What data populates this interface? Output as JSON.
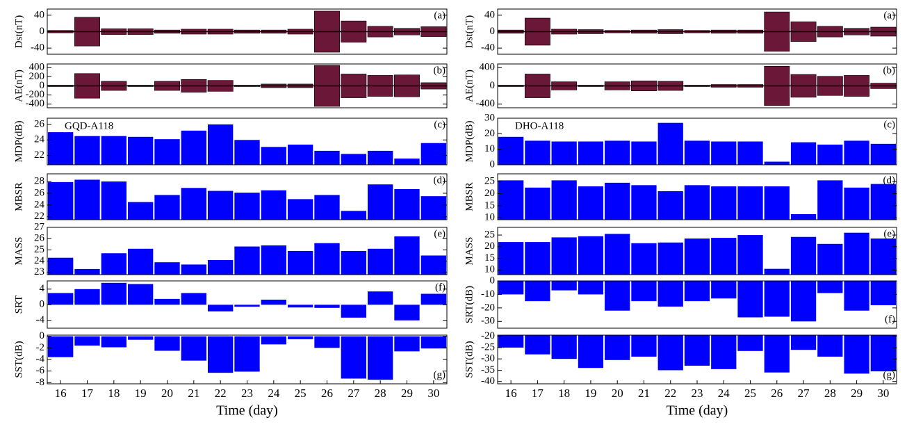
{
  "chart_data": [
    {
      "type": "spread",
      "ylabel": "Dst(nT)",
      "panel_label": "(a)",
      "color": "#6b1738",
      "ylim": [
        -55,
        55
      ],
      "yticks": [
        40,
        0,
        -40
      ],
      "values": [
        3,
        35,
        7,
        7,
        4,
        6,
        6,
        4,
        4,
        6,
        50,
        26,
        13,
        8,
        12
      ]
    },
    {
      "type": "spread",
      "ylabel": "AE(nT)",
      "panel_label": "(b)",
      "color": "#6b1738",
      "ylim": [
        -480,
        480
      ],
      "yticks": [
        400,
        200,
        0,
        -200,
        -400
      ],
      "values": [
        15,
        270,
        100,
        15,
        100,
        140,
        120,
        15,
        40,
        40,
        450,
        260,
        230,
        240,
        70
      ]
    },
    {
      "type": "bar",
      "ylabel": "MDP(dB)",
      "panel_label": "(c)",
      "annotation": "GQD-A118",
      "color": "#0000ff",
      "ylim": [
        20.8,
        26.8
      ],
      "yticks": [
        22,
        24,
        26
      ],
      "values": [
        25,
        24.5,
        24.5,
        24.4,
        24.1,
        25.2,
        26,
        24,
        23.1,
        23.4,
        22.6,
        22.2,
        22.6,
        21.6,
        23.6
      ]
    },
    {
      "type": "bar",
      "ylabel": "MBSR",
      "panel_label": "(d)",
      "color": "#0000ff",
      "ylim": [
        21.5,
        29.3
      ],
      "yticks": [
        22,
        24,
        26,
        28
      ],
      "values": [
        27.9,
        28.3,
        28,
        24.5,
        25.7,
        26.9,
        26.4,
        26.1,
        26.5,
        25,
        25.7,
        23,
        27.5,
        26.7,
        25.5
      ]
    },
    {
      "type": "bar",
      "ylabel": "MASS",
      "panel_label": "(e)",
      "color": "#0000ff",
      "ylim": [
        22.8,
        27
      ],
      "yticks": [
        23,
        24,
        25,
        26,
        27
      ],
      "values": [
        24.3,
        23.3,
        24.7,
        25.1,
        23.9,
        23.7,
        24.1,
        25.3,
        25.4,
        24.9,
        25.6,
        24.9,
        25.1,
        26.2,
        24.5
      ]
    },
    {
      "type": "bar",
      "ylabel": "SRT",
      "panel_label": "(f)",
      "color": "#0000ff",
      "ylim": [
        -6,
        6.1
      ],
      "yticks": [
        4,
        0,
        -4
      ],
      "values": [
        3,
        4,
        5.6,
        5.3,
        1.5,
        3,
        -1.7,
        -0.5,
        1.3,
        -0.7,
        -0.8,
        -3.3,
        3.4,
        -4,
        2.8
      ]
    },
    {
      "type": "bar",
      "ylabel": "SST(dB)",
      "panel_label": "(g)",
      "color": "#0000ff",
      "ylim": [
        -8.2,
        0.2
      ],
      "yticks": [
        0,
        -2,
        -4,
        -6,
        -8
      ],
      "values": [
        -3.6,
        -1.6,
        -1.9,
        -0.6,
        -2.5,
        -4.2,
        -6.3,
        -6.1,
        -1.4,
        -0.5,
        -2,
        -7.3,
        -7.5,
        -2.6,
        -2.1
      ],
      "categories": [
        "16",
        "17",
        "18",
        "19",
        "20",
        "21",
        "22",
        "23",
        "24",
        "25",
        "26",
        "27",
        "28",
        "29",
        "30"
      ],
      "xlabel": "Time (day)"
    },
    {
      "type": "spread",
      "ylabel": "Dst(nT)",
      "panel_label": "(a)",
      "color": "#6b1738",
      "ylim": [
        -55,
        55
      ],
      "yticks": [
        40,
        0,
        -40
      ],
      "values": [
        4,
        33,
        6,
        5,
        3,
        4,
        5,
        3,
        4,
        4,
        48,
        24,
        13,
        8,
        11
      ]
    },
    {
      "type": "spread",
      "ylabel": "AE(nT)",
      "panel_label": "(b)",
      "color": "#6b1738",
      "ylim": [
        -480,
        480
      ],
      "yticks": [
        400,
        0,
        -400
      ],
      "values": [
        15,
        260,
        90,
        15,
        90,
        110,
        100,
        15,
        30,
        30,
        430,
        250,
        210,
        230,
        60
      ]
    },
    {
      "type": "bar",
      "ylabel": "MDP(dB)",
      "panel_label": "(c)",
      "annotation": "DHO-A118",
      "color": "#0000ff",
      "ylim": [
        0,
        30
      ],
      "yticks": [
        0,
        10,
        20,
        30
      ],
      "values": [
        18,
        15.5,
        15,
        15,
        15.5,
        15,
        27,
        15.5,
        15,
        15,
        2,
        14.5,
        13,
        15.5,
        13.5
      ]
    },
    {
      "type": "bar",
      "ylabel": "MBSR",
      "panel_label": "(d)",
      "color": "#0000ff",
      "ylim": [
        9.2,
        28.2
      ],
      "yticks": [
        10,
        15,
        20,
        25
      ],
      "values": [
        25.5,
        22.5,
        25.5,
        23,
        24.5,
        23.5,
        21,
        23.5,
        23,
        23,
        23,
        11.5,
        25.5,
        22.5,
        24
      ]
    },
    {
      "type": "bar",
      "ylabel": "MASS",
      "panel_label": "(e)",
      "color": "#0000ff",
      "ylim": [
        8,
        28.3
      ],
      "yticks": [
        10,
        15,
        20,
        25
      ],
      "values": [
        22,
        22,
        24,
        24.5,
        25.5,
        21.5,
        21.8,
        23.5,
        23.8,
        25,
        10.5,
        24.2,
        21.2,
        26,
        23.5
      ]
    },
    {
      "type": "bar",
      "ylabel": "SRT(dB)",
      "panel_label": "(f)",
      "color": "#0000ff",
      "ylim": [
        -35,
        0
      ],
      "yticks": [
        0,
        -10,
        -20,
        -30
      ],
      "values": [
        -10,
        -15,
        -7,
        -10,
        -22,
        -15,
        -19,
        -15,
        -13,
        -27,
        -26.5,
        -30,
        -9,
        -22,
        -18
      ]
    },
    {
      "type": "bar",
      "ylabel": "SST(dB)",
      "panel_label": "(g)",
      "color": "#0000ff",
      "ylim": [
        -41,
        -19.5
      ],
      "yticks": [
        -20,
        -25,
        -30,
        -35,
        -40
      ],
      "values": [
        -25,
        -28,
        -30,
        -34,
        -30.5,
        -29,
        -35,
        -33,
        -34.5,
        -26.5,
        -36,
        -26,
        -29,
        -36.5,
        -35.5
      ],
      "categories": [
        "16",
        "17",
        "18",
        "19",
        "20",
        "21",
        "22",
        "23",
        "24",
        "25",
        "26",
        "27",
        "28",
        "29",
        "30"
      ],
      "xlabel": "Time (day)"
    }
  ]
}
